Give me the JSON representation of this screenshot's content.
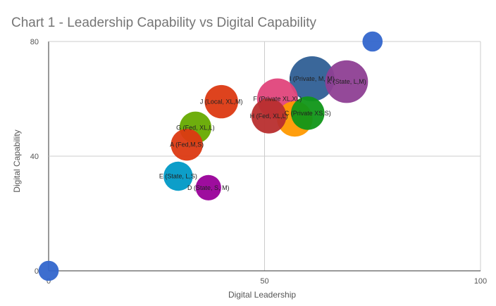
{
  "chart_data": {
    "type": "scatter",
    "variant": "bubble",
    "title": "Chart 1 -  Leadership Capability vs Digital Capability",
    "xlabel": "Digital Leadership",
    "ylabel": "Digital Capability",
    "xlim": [
      0,
      100
    ],
    "ylim": [
      0,
      80
    ],
    "xticks": [
      "0",
      "50",
      "100"
    ],
    "yticks": [
      "0",
      "40",
      "80"
    ],
    "grid": true,
    "legend": "none",
    "points": [
      {
        "label": "",
        "x": 0,
        "y": 0,
        "size": 0.2,
        "color": "#3366cc"
      },
      {
        "label": "",
        "x": 75,
        "y": 80,
        "size": 0.2,
        "color": "#3366cc"
      },
      {
        "label": "I (Private, M, M)",
        "x": 61,
        "y": 67,
        "size": 1.0,
        "color": "#2f5f95"
      },
      {
        "label": "K (State, L,M)",
        "x": 69,
        "y": 66,
        "size": 0.9,
        "color": "#8e3f94"
      },
      {
        "label": "F (Private XL,XL)",
        "x": 53,
        "y": 60,
        "size": 0.82,
        "color": "#e0457b"
      },
      {
        "label": "J (Local, XL,M)",
        "x": 40,
        "y": 59,
        "size": 0.55,
        "color": "#dc3912"
      },
      {
        "label": "",
        "x": 57,
        "y": 53,
        "size": 0.62,
        "color": "#ff9900"
      },
      {
        "label": "C (Private XS,S)",
        "x": 60,
        "y": 55,
        "size": 0.55,
        "color": "#109618"
      },
      {
        "label": "H (Fed, XL,L)",
        "x": 51,
        "y": 54,
        "size": 0.6,
        "color": "#b82e2e"
      },
      {
        "label": "G (Fed, XL,L)",
        "x": 34,
        "y": 50,
        "size": 0.5,
        "color": "#66aa00"
      },
      {
        "label": "A (Fed,M,S)",
        "x": 32,
        "y": 44,
        "size": 0.5,
        "color": "#dc3912"
      },
      {
        "label": "E (State, L,S)",
        "x": 30,
        "y": 33,
        "size": 0.42,
        "color": "#0099c6"
      },
      {
        "label": "D (State, S, M)",
        "x": 37,
        "y": 29,
        "size": 0.32,
        "color": "#990099"
      }
    ]
  }
}
